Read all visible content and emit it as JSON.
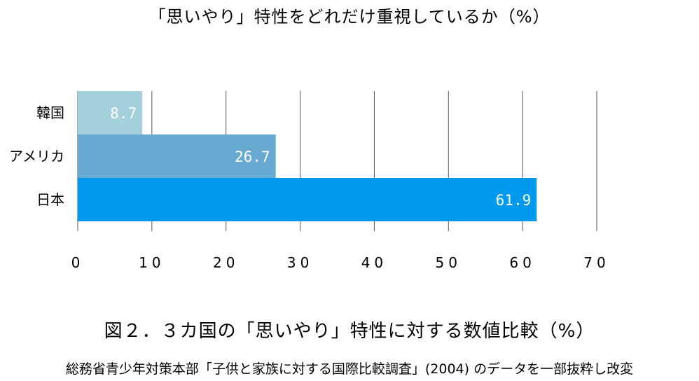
{
  "chart_data": {
    "type": "bar",
    "orientation": "horizontal",
    "title": "「思いやり」特性をどれだけ重視しているか（%）",
    "categories": [
      "韓国",
      "アメリカ",
      "日本"
    ],
    "values": [
      8.7,
      26.7,
      61.9
    ],
    "value_labels": [
      "8.7",
      "26.7",
      "61.9"
    ],
    "xlim": [
      0,
      70
    ],
    "ticks": [
      0,
      10,
      20,
      30,
      40,
      50,
      60,
      70
    ],
    "tick_labels": [
      "0",
      "10",
      "20",
      "30",
      "40",
      "50",
      "60",
      "70"
    ],
    "grid": true,
    "legend": "none",
    "colors": [
      "#a4d0dc",
      "#68a9d2",
      "#0099ee"
    ],
    "xlabel": "",
    "ylabel": ""
  },
  "caption": "図２．３カ国の「思いやり」特性に対する数値比較（%）",
  "source": "総務省青少年対策本部「子供と家族に対する国際比較調査」(2004) のデータを一部抜粋し改変"
}
